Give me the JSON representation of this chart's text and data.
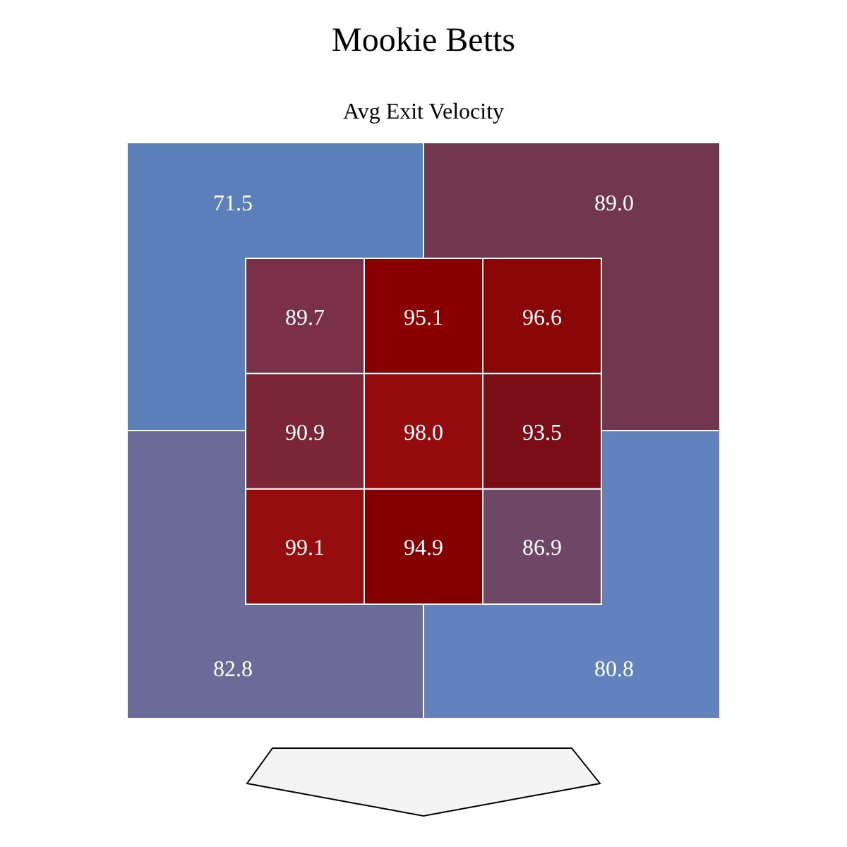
{
  "chart_data": [
    {
      "type": "heatmap",
      "title": "Mookie Betts",
      "subtitle": "Avg Exit Velocity",
      "categories": [
        null,
        null
      ],
      "y_categories": [
        null,
        null
      ],
      "cells": [
        [
          71.5,
          89.0
        ],
        [
          82.8,
          80.8
        ]
      ],
      "cell_labels": [
        [
          "71.5",
          "89.0"
        ],
        [
          "82.8",
          "80.8"
        ]
      ],
      "colors": [
        "#5b80b9",
        "#73364f",
        "#6b6b9a",
        "#6382bd"
      ],
      "data_labels": true
    },
    {
      "type": "heatmap",
      "categories": [
        null,
        null,
        null
      ],
      "y_categories": [
        null,
        null,
        null
      ],
      "cells": [
        [
          89.7,
          95.1,
          96.6
        ],
        [
          90.9,
          98.0,
          93.5
        ],
        [
          99.1,
          94.9,
          86.9
        ]
      ],
      "cell_labels": [
        [
          "89.7",
          "95.1",
          "96.6"
        ],
        [
          "90.9",
          "98.0",
          "93.5"
        ],
        [
          "99.1",
          "94.9",
          "86.9"
        ]
      ],
      "colors": [
        "#7a3048",
        "#8a0000",
        "#8a0505",
        "#7c2537",
        "#960c0e",
        "#7a0d16",
        "#960d0f",
        "#820000",
        "#6e4666"
      ],
      "data_labels": true
    }
  ]
}
